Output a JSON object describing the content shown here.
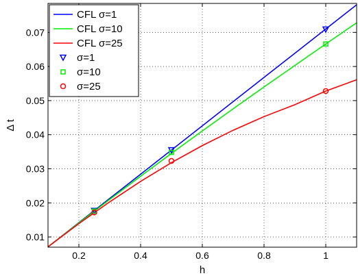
{
  "chart_data": {
    "type": "line",
    "xlabel": "h",
    "ylabel": "Δ t",
    "xlim": [
      0.1,
      1.1
    ],
    "ylim": [
      0.007,
      0.0785
    ],
    "x_ticks": [
      0.2,
      0.4,
      0.6,
      0.8,
      1
    ],
    "x_tick_labels": [
      "0.2",
      "0.4",
      "0.6",
      "0.8",
      "1"
    ],
    "y_ticks": [
      0.01,
      0.02,
      0.03,
      0.04,
      0.05,
      0.06,
      0.07
    ],
    "y_tick_labels": [
      "0.01",
      "0.02",
      "0.03",
      "0.04",
      "0.05",
      "0.06",
      "0.07"
    ],
    "grid": true,
    "legend_position": "top-left",
    "series": [
      {
        "name": "CFL σ=1",
        "kind": "line",
        "color": "#0000ff",
        "x": [
          0.1,
          0.2,
          0.3,
          0.4,
          0.5,
          0.6,
          0.7,
          0.8,
          0.9,
          1.0,
          1.1
        ],
        "y": [
          0.0071,
          0.0142,
          0.0213,
          0.0284,
          0.0355,
          0.0426,
          0.0497,
          0.0568,
          0.0639,
          0.071,
          0.0781
        ]
      },
      {
        "name": "CFL σ=10",
        "kind": "line",
        "color": "#00ee00",
        "x": [
          0.1,
          0.2,
          0.3,
          0.4,
          0.5,
          0.6,
          0.7,
          0.8,
          0.9,
          1.0,
          1.1
        ],
        "y": [
          0.0071,
          0.0141,
          0.021,
          0.0278,
          0.0345,
          0.0411,
          0.0476,
          0.054,
          0.0603,
          0.0666,
          0.0728
        ]
      },
      {
        "name": "CFL σ=25",
        "kind": "line",
        "color": "#ff0000",
        "x": [
          0.1,
          0.2,
          0.3,
          0.4,
          0.5,
          0.6,
          0.7,
          0.8,
          0.9,
          1.0,
          1.1
        ],
        "y": [
          0.0071,
          0.0139,
          0.0203,
          0.0263,
          0.0318,
          0.0368,
          0.0413,
          0.0453,
          0.0488,
          0.0528,
          0.0561
        ]
      },
      {
        "name": "σ=1",
        "kind": "marker",
        "marker": "triangle-down",
        "color": "#0000ff",
        "x": [
          0.25,
          0.5,
          1.0
        ],
        "y": [
          0.0177,
          0.0355,
          0.0709
        ]
      },
      {
        "name": "σ=10",
        "kind": "marker",
        "marker": "square",
        "color": "#00ee00",
        "x": [
          0.25,
          0.5,
          1.0
        ],
        "y": [
          0.0176,
          0.0348,
          0.0666
        ]
      },
      {
        "name": "σ=25",
        "kind": "marker",
        "marker": "circle",
        "color": "#ff0000",
        "x": [
          0.25,
          0.5,
          1.0
        ],
        "y": [
          0.0172,
          0.0323,
          0.0528
        ]
      }
    ]
  }
}
